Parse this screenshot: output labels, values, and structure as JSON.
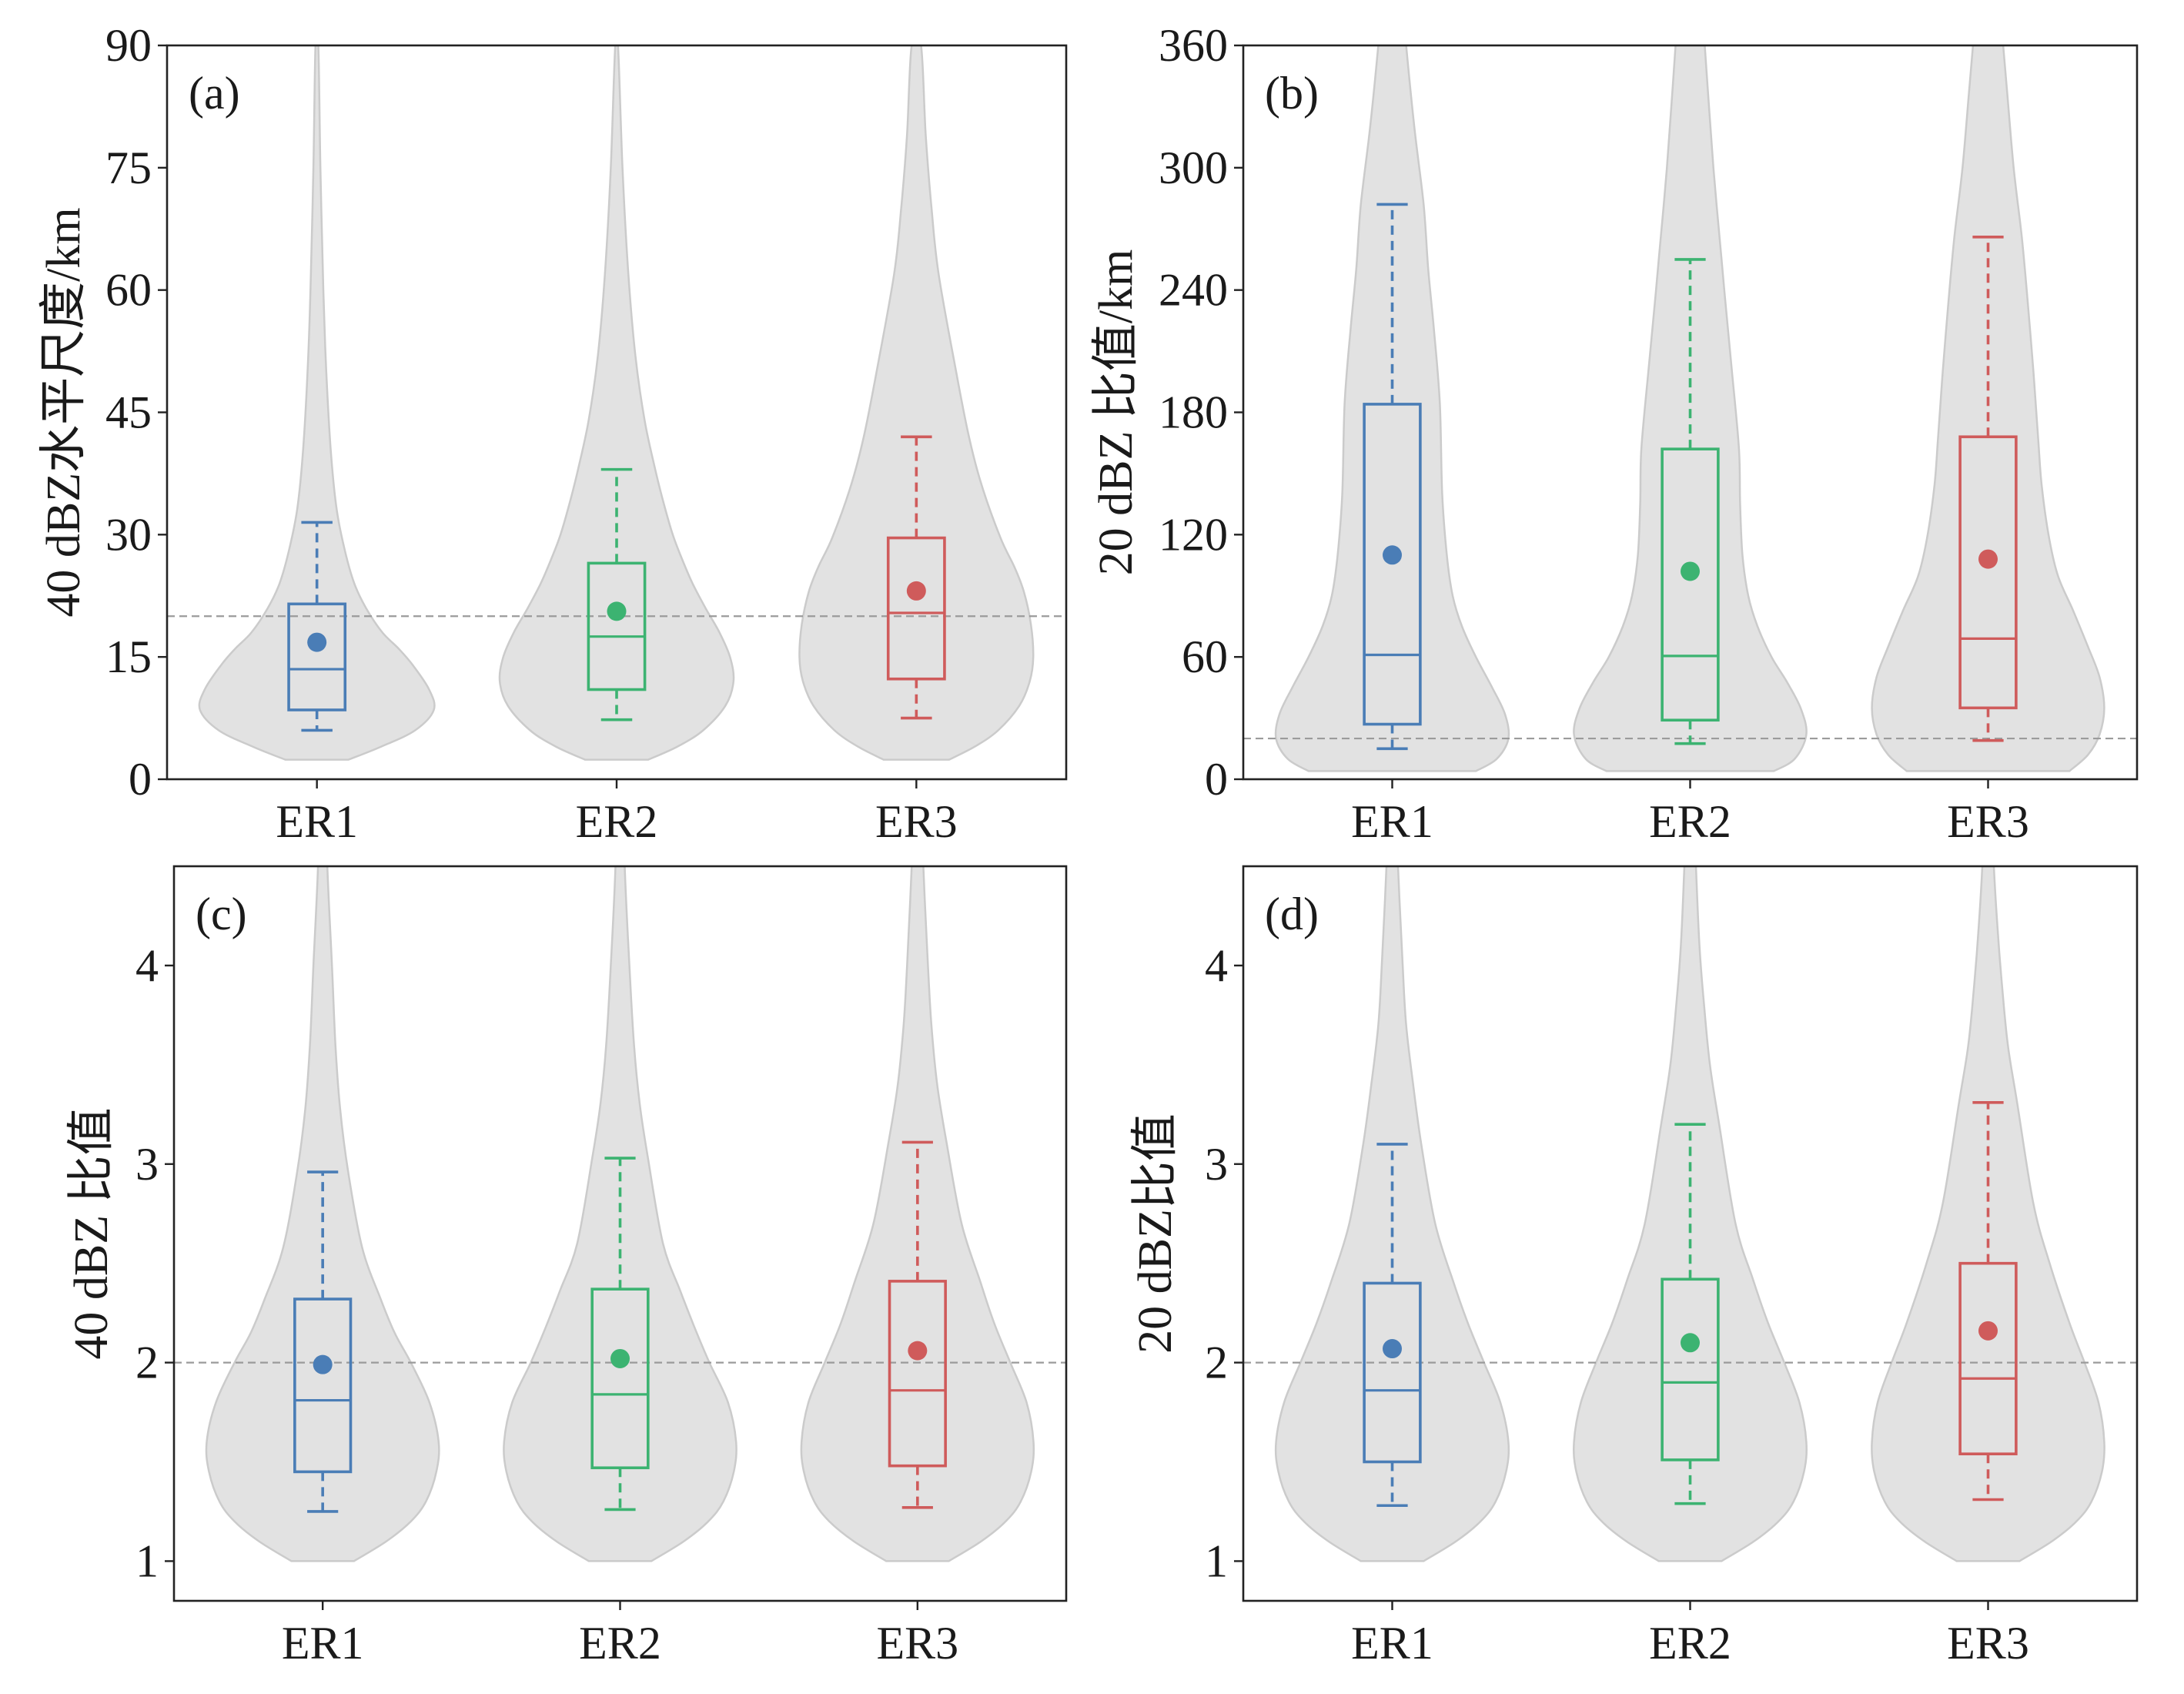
{
  "style": {
    "violin_fill": "#e2e2e2",
    "violin_edge": "#cbcbcb",
    "reference_line": "#9b9b9b",
    "axis": "#222222",
    "series_colors": [
      "#4a7db6",
      "#3cb371",
      "#cf5b5b"
    ]
  },
  "chart_data": [
    {
      "panel_label": "(a)",
      "type": "violin",
      "ylabel": "40 dBZ水平尺度/km",
      "categories": [
        "ER1",
        "ER2",
        "ER3"
      ],
      "ylim": [
        0,
        90
      ],
      "yticks": [
        0,
        15,
        30,
        45,
        60,
        75,
        90
      ],
      "reference_line": 20,
      "grid": false,
      "series": [
        {
          "color": "#4a7db6",
          "box": {
            "whisker_low": 6,
            "q1": 8.5,
            "median": 13.5,
            "q3": 21.5,
            "whisker_high": 31.5
          },
          "mean": 16.8,
          "violin_density": [
            [
              2.4,
              0.27
            ],
            [
              4,
              0.55
            ],
            [
              6,
              0.84
            ],
            [
              8.5,
              1.0
            ],
            [
              11,
              0.96
            ],
            [
              14,
              0.82
            ],
            [
              16,
              0.7
            ],
            [
              18,
              0.56
            ],
            [
              21,
              0.42
            ],
            [
              24,
              0.32
            ],
            [
              28,
              0.24
            ],
            [
              33,
              0.17
            ],
            [
              40,
              0.12
            ],
            [
              50,
              0.08
            ],
            [
              60,
              0.055
            ],
            [
              75,
              0.03
            ],
            [
              90,
              0.012
            ]
          ]
        },
        {
          "color": "#3cb371",
          "box": {
            "whisker_low": 7.3,
            "q1": 11,
            "median": 17.5,
            "q3": 26.5,
            "whisker_high": 38
          },
          "mean": 20.6,
          "violin_density": [
            [
              2.4,
              0.27
            ],
            [
              4,
              0.52
            ],
            [
              6,
              0.74
            ],
            [
              9,
              0.93
            ],
            [
              12,
              1.0
            ],
            [
              15,
              0.97
            ],
            [
              18,
              0.88
            ],
            [
              21,
              0.76
            ],
            [
              24,
              0.65
            ],
            [
              27,
              0.56
            ],
            [
              30,
              0.48
            ],
            [
              34,
              0.4
            ],
            [
              38,
              0.33
            ],
            [
              44,
              0.24
            ],
            [
              52,
              0.16
            ],
            [
              62,
              0.1
            ],
            [
              75,
              0.05
            ],
            [
              90,
              0.012
            ]
          ]
        },
        {
          "color": "#cf5b5b",
          "box": {
            "whisker_low": 7.5,
            "q1": 12.3,
            "median": 20.4,
            "q3": 29.6,
            "whisker_high": 42
          },
          "mean": 23.1,
          "violin_density": [
            [
              2.4,
              0.28
            ],
            [
              4,
              0.5
            ],
            [
              6,
              0.7
            ],
            [
              9,
              0.88
            ],
            [
              12,
              0.97
            ],
            [
              15,
              1.0
            ],
            [
              19,
              0.98
            ],
            [
              23,
              0.92
            ],
            [
              26,
              0.84
            ],
            [
              29.6,
              0.72
            ],
            [
              36,
              0.56
            ],
            [
              42,
              0.45
            ],
            [
              50,
              0.34
            ],
            [
              62,
              0.19
            ],
            [
              70,
              0.13
            ],
            [
              79,
              0.08
            ],
            [
              90,
              0.04
            ]
          ]
        }
      ]
    },
    {
      "panel_label": "(b)",
      "type": "violin",
      "ylabel": "20 dBZ 比值/km",
      "categories": [
        "ER1",
        "ER2",
        "ER3"
      ],
      "ylim": [
        0,
        360
      ],
      "yticks": [
        0,
        60,
        120,
        180,
        240,
        300,
        360
      ],
      "reference_line": 20,
      "grid": false,
      "series": [
        {
          "color": "#4a7db6",
          "box": {
            "whisker_low": 15,
            "q1": 27,
            "median": 61,
            "q3": 184,
            "whisker_high": 282
          },
          "mean": 110,
          "violin_density": [
            [
              4,
              0.72
            ],
            [
              10,
              0.9
            ],
            [
              20,
              1.0
            ],
            [
              32,
              0.97
            ],
            [
              45,
              0.86
            ],
            [
              60,
              0.72
            ],
            [
              75,
              0.6
            ],
            [
              90,
              0.52
            ],
            [
              110,
              0.47
            ],
            [
              140,
              0.43
            ],
            [
              184,
              0.41
            ],
            [
              220,
              0.36
            ],
            [
              250,
              0.31
            ],
            [
              282,
              0.27
            ],
            [
              320,
              0.19
            ],
            [
              360,
              0.12
            ],
            [
              400,
              0.06
            ]
          ]
        },
        {
          "color": "#3cb371",
          "box": {
            "whisker_low": 17.5,
            "q1": 29,
            "median": 60.5,
            "q3": 162,
            "whisker_high": 255
          },
          "mean": 102,
          "violin_density": [
            [
              4,
              0.72
            ],
            [
              10,
              0.9
            ],
            [
              22,
              1.0
            ],
            [
              35,
              0.95
            ],
            [
              48,
              0.83
            ],
            [
              60,
              0.7
            ],
            [
              75,
              0.58
            ],
            [
              90,
              0.5
            ],
            [
              110,
              0.45
            ],
            [
              135,
              0.43
            ],
            [
              162,
              0.42
            ],
            [
              200,
              0.36
            ],
            [
              230,
              0.31
            ],
            [
              255,
              0.27
            ],
            [
              300,
              0.2
            ],
            [
              340,
              0.15
            ],
            [
              380,
              0.1
            ],
            [
              420,
              0.04
            ]
          ]
        },
        {
          "color": "#cf5b5b",
          "box": {
            "whisker_low": 19,
            "q1": 35,
            "median": 69,
            "q3": 168,
            "whisker_high": 266
          },
          "mean": 108,
          "violin_density": [
            [
              4,
              0.7
            ],
            [
              12,
              0.86
            ],
            [
              22,
              0.96
            ],
            [
              35,
              1.0
            ],
            [
              50,
              0.96
            ],
            [
              65,
              0.86
            ],
            [
              83,
              0.73
            ],
            [
              100,
              0.6
            ],
            [
              120,
              0.52
            ],
            [
              145,
              0.46
            ],
            [
              168,
              0.43
            ],
            [
              200,
              0.39
            ],
            [
              235,
              0.34
            ],
            [
              266,
              0.29
            ],
            [
              300,
              0.22
            ],
            [
              340,
              0.16
            ],
            [
              380,
              0.1
            ],
            [
              420,
              0.04
            ]
          ]
        }
      ]
    },
    {
      "panel_label": "(c)",
      "type": "violin",
      "ylabel": "40 dBZ 比值",
      "categories": [
        "ER1",
        "ER2",
        "ER3"
      ],
      "ylim": [
        0.8,
        4.5
      ],
      "yticks": [
        1,
        2,
        3,
        4
      ],
      "reference_line": 2,
      "grid": false,
      "series": [
        {
          "color": "#4a7db6",
          "box": {
            "whisker_low": 1.25,
            "q1": 1.45,
            "median": 1.81,
            "q3": 2.32,
            "whisker_high": 2.96
          },
          "mean": 1.99,
          "violin_density": [
            [
              1.0,
              0.27
            ],
            [
              1.1,
              0.55
            ],
            [
              1.2,
              0.76
            ],
            [
              1.3,
              0.89
            ],
            [
              1.45,
              0.98
            ],
            [
              1.6,
              1.0
            ],
            [
              1.8,
              0.92
            ],
            [
              2.0,
              0.76
            ],
            [
              2.15,
              0.62
            ],
            [
              2.32,
              0.5
            ],
            [
              2.58,
              0.34
            ],
            [
              2.96,
              0.22
            ],
            [
              3.28,
              0.15
            ],
            [
              3.6,
              0.11
            ],
            [
              4.0,
              0.08
            ],
            [
              4.5,
              0.04
            ],
            [
              5.0,
              0.02
            ]
          ]
        },
        {
          "color": "#3cb371",
          "box": {
            "whisker_low": 1.26,
            "q1": 1.47,
            "median": 1.84,
            "q3": 2.37,
            "whisker_high": 3.03
          },
          "mean": 2.02,
          "violin_density": [
            [
              1.0,
              0.27
            ],
            [
              1.1,
              0.55
            ],
            [
              1.2,
              0.76
            ],
            [
              1.3,
              0.89
            ],
            [
              1.45,
              0.98
            ],
            [
              1.6,
              1.0
            ],
            [
              1.8,
              0.93
            ],
            [
              2.0,
              0.77
            ],
            [
              2.18,
              0.64
            ],
            [
              2.36,
              0.52
            ],
            [
              2.6,
              0.37
            ],
            [
              3.03,
              0.24
            ],
            [
              3.3,
              0.17
            ],
            [
              3.6,
              0.12
            ],
            [
              4.0,
              0.08
            ],
            [
              4.5,
              0.04
            ],
            [
              5.0,
              0.02
            ]
          ]
        },
        {
          "color": "#cf5b5b",
          "box": {
            "whisker_low": 1.27,
            "q1": 1.48,
            "median": 1.86,
            "q3": 2.41,
            "whisker_high": 3.11
          },
          "mean": 2.06,
          "violin_density": [
            [
              1.0,
              0.27
            ],
            [
              1.1,
              0.55
            ],
            [
              1.2,
              0.76
            ],
            [
              1.3,
              0.89
            ],
            [
              1.45,
              0.98
            ],
            [
              1.6,
              1.0
            ],
            [
              1.8,
              0.94
            ],
            [
              2.0,
              0.8
            ],
            [
              2.2,
              0.66
            ],
            [
              2.41,
              0.54
            ],
            [
              2.7,
              0.38
            ],
            [
              3.11,
              0.25
            ],
            [
              3.4,
              0.17
            ],
            [
              3.7,
              0.12
            ],
            [
              4.0,
              0.09
            ],
            [
              4.5,
              0.05
            ],
            [
              5.0,
              0.02
            ]
          ]
        }
      ]
    },
    {
      "panel_label": "(d)",
      "type": "violin",
      "ylabel": "20 dBZ比值",
      "categories": [
        "ER1",
        "ER2",
        "ER3"
      ],
      "ylim": [
        0.8,
        4.5
      ],
      "yticks": [
        1,
        2,
        3,
        4
      ],
      "reference_line": 2,
      "grid": false,
      "series": [
        {
          "color": "#4a7db6",
          "box": {
            "whisker_low": 1.28,
            "q1": 1.5,
            "median": 1.86,
            "q3": 2.4,
            "whisker_high": 3.1
          },
          "mean": 2.07,
          "violin_density": [
            [
              1.0,
              0.27
            ],
            [
              1.1,
              0.55
            ],
            [
              1.2,
              0.76
            ],
            [
              1.3,
              0.89
            ],
            [
              1.45,
              0.98
            ],
            [
              1.6,
              1.0
            ],
            [
              1.8,
              0.93
            ],
            [
              2.0,
              0.79
            ],
            [
              2.2,
              0.65
            ],
            [
              2.4,
              0.53
            ],
            [
              2.7,
              0.37
            ],
            [
              3.1,
              0.25
            ],
            [
              3.4,
              0.18
            ],
            [
              3.7,
              0.12
            ],
            [
              4.0,
              0.09
            ],
            [
              4.5,
              0.05
            ],
            [
              5.0,
              0.02
            ]
          ]
        },
        {
          "color": "#3cb371",
          "box": {
            "whisker_low": 1.29,
            "q1": 1.51,
            "median": 1.9,
            "q3": 2.42,
            "whisker_high": 3.2
          },
          "mean": 2.1,
          "violin_density": [
            [
              1.0,
              0.27
            ],
            [
              1.1,
              0.55
            ],
            [
              1.2,
              0.76
            ],
            [
              1.3,
              0.89
            ],
            [
              1.45,
              0.98
            ],
            [
              1.6,
              1.0
            ],
            [
              1.8,
              0.94
            ],
            [
              2.0,
              0.81
            ],
            [
              2.2,
              0.67
            ],
            [
              2.42,
              0.54
            ],
            [
              2.7,
              0.39
            ],
            [
              3.2,
              0.25
            ],
            [
              3.5,
              0.17
            ],
            [
              3.8,
              0.12
            ],
            [
              4.1,
              0.08
            ],
            [
              4.5,
              0.05
            ],
            [
              5.0,
              0.02
            ]
          ]
        },
        {
          "color": "#cf5b5b",
          "box": {
            "whisker_low": 1.31,
            "q1": 1.54,
            "median": 1.92,
            "q3": 2.5,
            "whisker_high": 3.31
          },
          "mean": 2.16,
          "violin_density": [
            [
              1.0,
              0.27
            ],
            [
              1.1,
              0.55
            ],
            [
              1.2,
              0.76
            ],
            [
              1.3,
              0.89
            ],
            [
              1.45,
              0.98
            ],
            [
              1.6,
              1.0
            ],
            [
              1.8,
              0.95
            ],
            [
              2.0,
              0.83
            ],
            [
              2.2,
              0.7
            ],
            [
              2.5,
              0.53
            ],
            [
              2.8,
              0.39
            ],
            [
              3.31,
              0.25
            ],
            [
              3.6,
              0.17
            ],
            [
              3.9,
              0.12
            ],
            [
              4.2,
              0.08
            ],
            [
              4.5,
              0.05
            ],
            [
              5.0,
              0.02
            ]
          ]
        }
      ]
    }
  ]
}
